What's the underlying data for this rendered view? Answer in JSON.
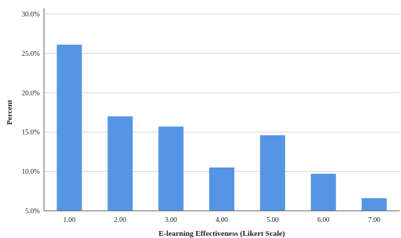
{
  "chart_data": {
    "type": "bar",
    "title": "",
    "xlabel": "E-learning Effectiveness (Likert Scale)",
    "ylabel": "Percent",
    "categories": [
      "1.00",
      "2.00",
      "3.00",
      "4.00",
      "5.00",
      "6.00",
      "7.00"
    ],
    "values": [
      26.1,
      17.0,
      15.7,
      10.5,
      14.6,
      9.7,
      6.6
    ],
    "ylim": [
      5,
      30
    ],
    "yticks": [
      5,
      10,
      15,
      20,
      25,
      30
    ],
    "ytick_labels": [
      "5.0%",
      "10.0%",
      "15.0%",
      "20.0%",
      "25.0%",
      "30.0%"
    ],
    "grid": true,
    "legend": "none",
    "bar_color": "#5596e4"
  }
}
